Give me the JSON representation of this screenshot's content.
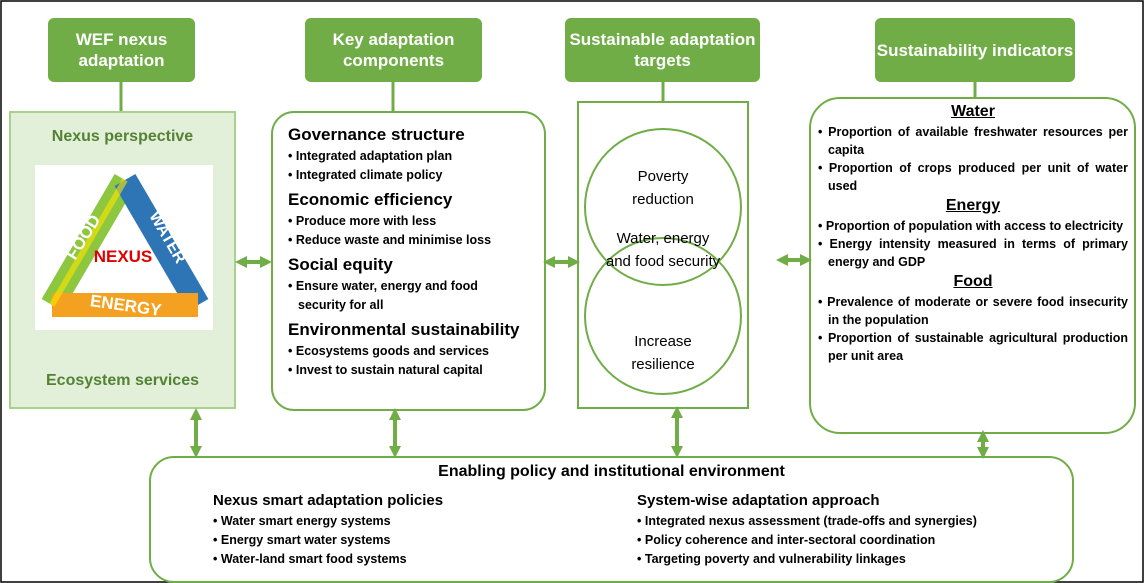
{
  "headers": [
    "WEF nexus adaptation",
    "Key adaptation components",
    "Sustainable adaptation targets",
    "Sustainability indicators"
  ],
  "nexus_panel": {
    "top": "Nexus perspective",
    "bottom": "Ecosystem services",
    "logo": {
      "center": "NEXUS",
      "food": "FOOD",
      "water": "WATER",
      "energy": "ENERGY"
    }
  },
  "components": [
    {
      "title": "Governance structure",
      "items": [
        "Integrated adaptation plan",
        "Integrated climate policy"
      ]
    },
    {
      "title": "Economic efficiency",
      "items": [
        "Produce more with less",
        "Reduce waste and minimise loss"
      ]
    },
    {
      "title": "Social equity",
      "items": [
        "Ensure water, energy and food security for all"
      ]
    },
    {
      "title": "Environmental sustainability",
      "items": [
        "Ecosystems goods and services",
        "Invest to sustain natural capital"
      ]
    }
  ],
  "targets": [
    "Poverty reduction",
    "Water, energy and food security",
    "Increase resilience"
  ],
  "indicators": [
    {
      "title": "Water",
      "items": [
        "Proportion of available freshwater resources per capita",
        "Proportion of crops produced per unit of water used"
      ]
    },
    {
      "title": "Energy",
      "items": [
        "Proportion of population with access to electricity",
        "Energy intensity measured in terms of primary energy and GDP"
      ]
    },
    {
      "title": "Food",
      "items": [
        "Prevalence of moderate or severe food insecurity in the population",
        "Proportion of sustainable agricultural production per unit area"
      ]
    }
  ],
  "enabling": {
    "title": "Enabling policy and institutional environment",
    "groups": [
      {
        "title": "Nexus smart adaptation policies",
        "items": [
          "Water smart energy systems",
          "Energy smart water systems",
          "Water-land smart food systems"
        ]
      },
      {
        "title": "System-wise adaptation approach",
        "items": [
          "Integrated nexus assessment (trade-offs and synergies)",
          "Policy coherence and inter-sectoral coordination",
          "Targeting poverty and vulnerability linkages"
        ]
      }
    ]
  }
}
